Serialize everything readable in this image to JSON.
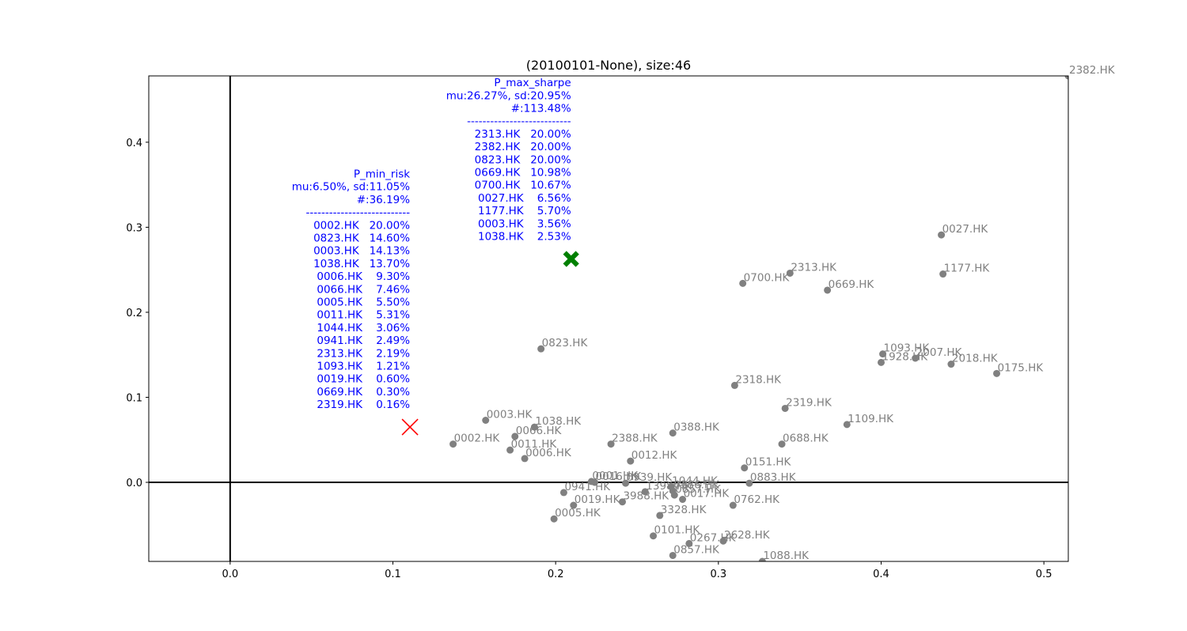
{
  "chart_data": {
    "type": "scatter",
    "title": "(20100101-None), size:46",
    "xlabel": "",
    "ylabel": "",
    "xlim": [
      -0.05,
      0.515
    ],
    "ylim": [
      -0.093,
      0.478
    ],
    "xticks": [
      0.0,
      0.1,
      0.2,
      0.3,
      0.4,
      0.5
    ],
    "xtick_labels": [
      "0.0",
      "0.1",
      "0.2",
      "0.3",
      "0.4",
      "0.5"
    ],
    "yticks": [
      0.0,
      0.1,
      0.2,
      0.3,
      0.4
    ],
    "ytick_labels": [
      "0.0",
      "0.1",
      "0.2",
      "0.3",
      "0.4"
    ],
    "grid": false,
    "reference_lines": {
      "x": 0.0,
      "y": 0.0
    },
    "colors": {
      "points": "#808080",
      "annotation": "#0000ff",
      "min_risk_marker": "#ff0000",
      "max_sharpe_marker": "#008000"
    },
    "points": [
      {
        "label": "2382.HK",
        "x": 0.515,
        "y": 0.478
      },
      {
        "label": "0027.HK",
        "x": 0.437,
        "y": 0.291
      },
      {
        "label": "1177.HK",
        "x": 0.438,
        "y": 0.245
      },
      {
        "label": "2313.HK",
        "x": 0.344,
        "y": 0.246
      },
      {
        "label": "0700.HK",
        "x": 0.315,
        "y": 0.234
      },
      {
        "label": "0669.HK",
        "x": 0.367,
        "y": 0.226
      },
      {
        "label": "0823.HK",
        "x": 0.191,
        "y": 0.157
      },
      {
        "label": "1093.HK",
        "x": 0.401,
        "y": 0.151
      },
      {
        "label": "2007.HK",
        "x": 0.421,
        "y": 0.146
      },
      {
        "label": "1928.HK",
        "x": 0.4,
        "y": 0.141
      },
      {
        "label": "2018.HK",
        "x": 0.443,
        "y": 0.139
      },
      {
        "label": "0175.HK",
        "x": 0.471,
        "y": 0.128
      },
      {
        "label": "2318.HK",
        "x": 0.31,
        "y": 0.114
      },
      {
        "label": "2319.HK",
        "x": 0.341,
        "y": 0.087
      },
      {
        "label": "0003.HK",
        "x": 0.157,
        "y": 0.073
      },
      {
        "label": "1109.HK",
        "x": 0.379,
        "y": 0.068
      },
      {
        "label": "1038.HK",
        "x": 0.187,
        "y": 0.065
      },
      {
        "label": "0388.HK",
        "x": 0.272,
        "y": 0.058
      },
      {
        "label": "0066.HK",
        "x": 0.175,
        "y": 0.054
      },
      {
        "label": "2388.HK",
        "x": 0.234,
        "y": 0.045
      },
      {
        "label": "0688.HK",
        "x": 0.339,
        "y": 0.045
      },
      {
        "label": "0002.HK",
        "x": 0.137,
        "y": 0.045
      },
      {
        "label": "0011.HK",
        "x": 0.172,
        "y": 0.038
      },
      {
        "label": "0006.HK",
        "x": 0.181,
        "y": 0.028
      },
      {
        "label": "0012.HK",
        "x": 0.246,
        "y": 0.025
      },
      {
        "label": "0151.HK",
        "x": 0.316,
        "y": 0.017
      },
      {
        "label": "0001.HK",
        "x": 0.222,
        "y": 0.001
      },
      {
        "label": "0016.HK",
        "x": 0.224,
        "y": 0.0
      },
      {
        "label": "0939.HK",
        "x": 0.243,
        "y": -0.001
      },
      {
        "label": "0883.HK",
        "x": 0.319,
        "y": -0.001
      },
      {
        "label": "1044.HK",
        "x": 0.271,
        "y": -0.005
      },
      {
        "label": "0386.HK",
        "x": 0.272,
        "y": -0.01
      },
      {
        "label": "1398.HK",
        "x": 0.255,
        "y": -0.011
      },
      {
        "label": "0941.HK",
        "x": 0.205,
        "y": -0.012
      },
      {
        "label": "0857.HK",
        "x": 0.273,
        "y": -0.015
      },
      {
        "label": "0017.HK",
        "x": 0.278,
        "y": -0.02
      },
      {
        "label": "3988.HK",
        "x": 0.241,
        "y": -0.023
      },
      {
        "label": "0762.HK",
        "x": 0.309,
        "y": -0.027
      },
      {
        "label": "0019.HK",
        "x": 0.211,
        "y": -0.027
      },
      {
        "label": "3328.HK",
        "x": 0.264,
        "y": -0.039
      },
      {
        "label": "0005.HK",
        "x": 0.199,
        "y": -0.043
      },
      {
        "label": "0101.HK",
        "x": 0.26,
        "y": -0.063
      },
      {
        "label": "2628.HK",
        "x": 0.303,
        "y": -0.069
      },
      {
        "label": "0267.HK",
        "x": 0.282,
        "y": -0.072
      },
      {
        "label": "0857.HK",
        "x": 0.272,
        "y": -0.086
      },
      {
        "label": "1088.HK",
        "x": 0.327,
        "y": -0.093
      }
    ],
    "portfolios": [
      {
        "id": "min_risk",
        "marker": "x",
        "x": 0.1105,
        "y": 0.065,
        "lines": [
          "P_min_risk",
          "mu:6.50%, sd:11.05%",
          "#:36.19%",
          "---------------------------",
          "0002.HK   20.00%",
          "0823.HK   14.60%",
          "0003.HK   14.13%",
          "1038.HK   13.70%",
          "0006.HK    9.30%",
          "0066.HK    7.46%",
          "0005.HK    5.50%",
          "0011.HK    5.31%",
          "1044.HK    3.06%",
          "0941.HK    2.49%",
          "2313.HK    2.19%",
          "1093.HK    1.21%",
          "0019.HK    0.60%",
          "0669.HK    0.30%",
          "2319.HK    0.16%"
        ]
      },
      {
        "id": "max_sharpe",
        "marker": "X",
        "x": 0.2095,
        "y": 0.2627,
        "lines": [
          "P_max_sharpe",
          "mu:26.27%, sd:20.95%",
          "#:113.48%",
          "---------------------------",
          "2313.HK   20.00%",
          "2382.HK   20.00%",
          "0823.HK   20.00%",
          "0669.HK   10.98%",
          "0700.HK   10.67%",
          "0027.HK    6.56%",
          "1177.HK    5.70%",
          "0003.HK    3.56%",
          "1038.HK    2.53%"
        ]
      }
    ]
  }
}
